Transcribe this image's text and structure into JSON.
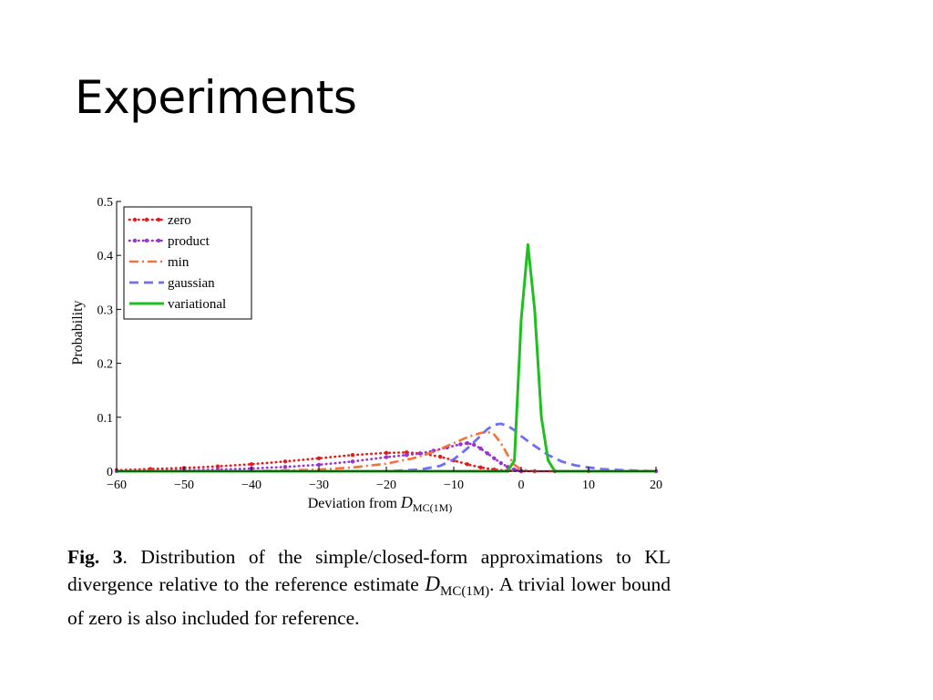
{
  "slide": {
    "title": "Experiments"
  },
  "chart_data": {
    "type": "line",
    "xlabel_prefix": "Deviation from ",
    "xlabel_symbol": "D",
    "xlabel_subscript": "MC(1M)",
    "ylabel": "Probability",
    "xlim": [
      -60,
      20
    ],
    "ylim": [
      0,
      0.5
    ],
    "xticks": [
      -60,
      -50,
      -40,
      -30,
      -20,
      -10,
      0,
      10,
      20
    ],
    "xtick_labels": [
      "−60",
      "−50",
      "−40",
      "−30",
      "−20",
      "−10",
      "0",
      "10",
      "20"
    ],
    "yticks": [
      0,
      0.1,
      0.2,
      0.3,
      0.4,
      0.5
    ],
    "ytick_labels": [
      "0",
      "0.1",
      "0.2",
      "0.3",
      "0.4",
      "0.5"
    ],
    "grid": false,
    "legend_position": "top-left",
    "series": [
      {
        "name": "zero",
        "color": "#e41a1c",
        "style": "dotted-markers",
        "x": [
          -60,
          -55,
          -50,
          -45,
          -40,
          -35,
          -30,
          -25,
          -20,
          -17,
          -15,
          -12,
          -10,
          -8,
          -6,
          -4,
          -2,
          0,
          2,
          5,
          10,
          20
        ],
        "y": [
          0.002,
          0.004,
          0.006,
          0.009,
          0.013,
          0.018,
          0.024,
          0.03,
          0.034,
          0.035,
          0.033,
          0.027,
          0.02,
          0.013,
          0.007,
          0.003,
          0.001,
          0.0,
          0.0,
          0.0,
          0.0,
          0.0
        ]
      },
      {
        "name": "product",
        "color": "#9933cc",
        "style": "dotted-markers",
        "x": [
          -60,
          -50,
          -45,
          -40,
          -35,
          -30,
          -25,
          -20,
          -17,
          -15,
          -13,
          -11,
          -9,
          -8,
          -7,
          -6,
          -5,
          -4,
          -3,
          -2,
          -1,
          0,
          2,
          5,
          20
        ],
        "y": [
          0.0,
          0.002,
          0.003,
          0.005,
          0.008,
          0.012,
          0.018,
          0.026,
          0.03,
          0.033,
          0.038,
          0.044,
          0.05,
          0.052,
          0.049,
          0.042,
          0.033,
          0.024,
          0.015,
          0.008,
          0.003,
          0.001,
          0.0,
          0.0,
          0.0
        ]
      },
      {
        "name": "min",
        "color": "#f4723a",
        "style": "dashdot",
        "x": [
          -60,
          -40,
          -30,
          -25,
          -20,
          -16,
          -13,
          -10,
          -8,
          -6,
          -5,
          -4,
          -3,
          -2,
          -1,
          0,
          2,
          5,
          20
        ],
        "y": [
          0.0,
          0.0,
          0.003,
          0.007,
          0.014,
          0.024,
          0.036,
          0.052,
          0.063,
          0.071,
          0.073,
          0.068,
          0.052,
          0.03,
          0.012,
          0.003,
          0.0,
          0.0,
          0.0
        ]
      },
      {
        "name": "gaussian",
        "color": "#6f6ff0",
        "style": "dashed",
        "x": [
          -60,
          -20,
          -15,
          -12,
          -10,
          -8,
          -6,
          -5,
          -4,
          -3,
          -2,
          -1,
          0,
          2,
          4,
          6,
          8,
          10,
          12,
          15,
          20
        ],
        "y": [
          0.0,
          0.0,
          0.003,
          0.01,
          0.022,
          0.042,
          0.066,
          0.078,
          0.086,
          0.088,
          0.084,
          0.076,
          0.065,
          0.047,
          0.03,
          0.018,
          0.011,
          0.007,
          0.004,
          0.002,
          0.0
        ]
      },
      {
        "name": "variational",
        "color": "#1fbf1f",
        "style": "solid",
        "x": [
          -60,
          -2,
          -1,
          0,
          1,
          2,
          3,
          4,
          5,
          20
        ],
        "y": [
          0.0,
          0.0,
          0.02,
          0.28,
          0.42,
          0.3,
          0.1,
          0.02,
          0.0,
          0.0
        ]
      }
    ]
  },
  "caption": {
    "fig_label": "Fig. 3",
    "text_before": ". Distribution of the simple/closed-form approximations to KL divergence relative to the reference estimate ",
    "symbol": "D",
    "subscript": "MC(1M)",
    "text_after": ".  A trivial lower bound of zero is also included for reference."
  }
}
